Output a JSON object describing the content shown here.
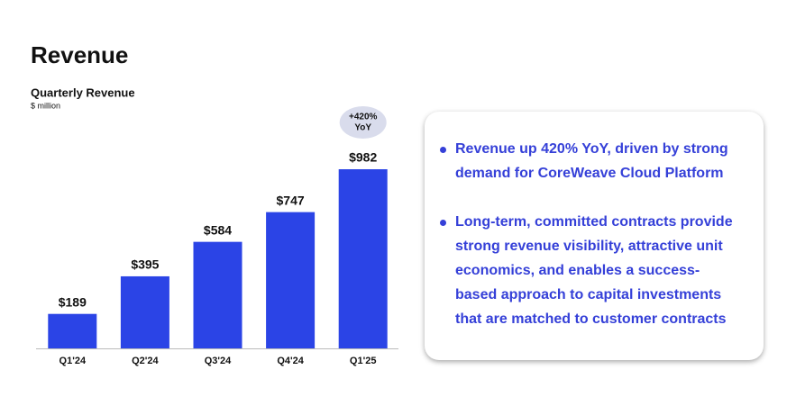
{
  "heading": "Revenue",
  "chart_data": {
    "type": "bar",
    "title": "Quarterly Revenue",
    "subtitle": "$ million",
    "categories": [
      "Q1'24",
      "Q2'24",
      "Q3'24",
      "Q4'24",
      "Q1'25"
    ],
    "values": [
      189,
      395,
      584,
      747,
      982
    ],
    "value_labels": [
      "$189",
      "$395",
      "$584",
      "$747",
      "$982"
    ],
    "color": "#2b44e6",
    "annotation": [
      "+420%",
      "YoY"
    ]
  },
  "bullets": [
    "Revenue up 420% YoY, driven by strong demand for CoreWeave Cloud Platform",
    "Long-term, committed contracts provide strong revenue visibility, attractive unit economics, and enables a success-based approach to capital investments that are matched to customer contracts"
  ]
}
